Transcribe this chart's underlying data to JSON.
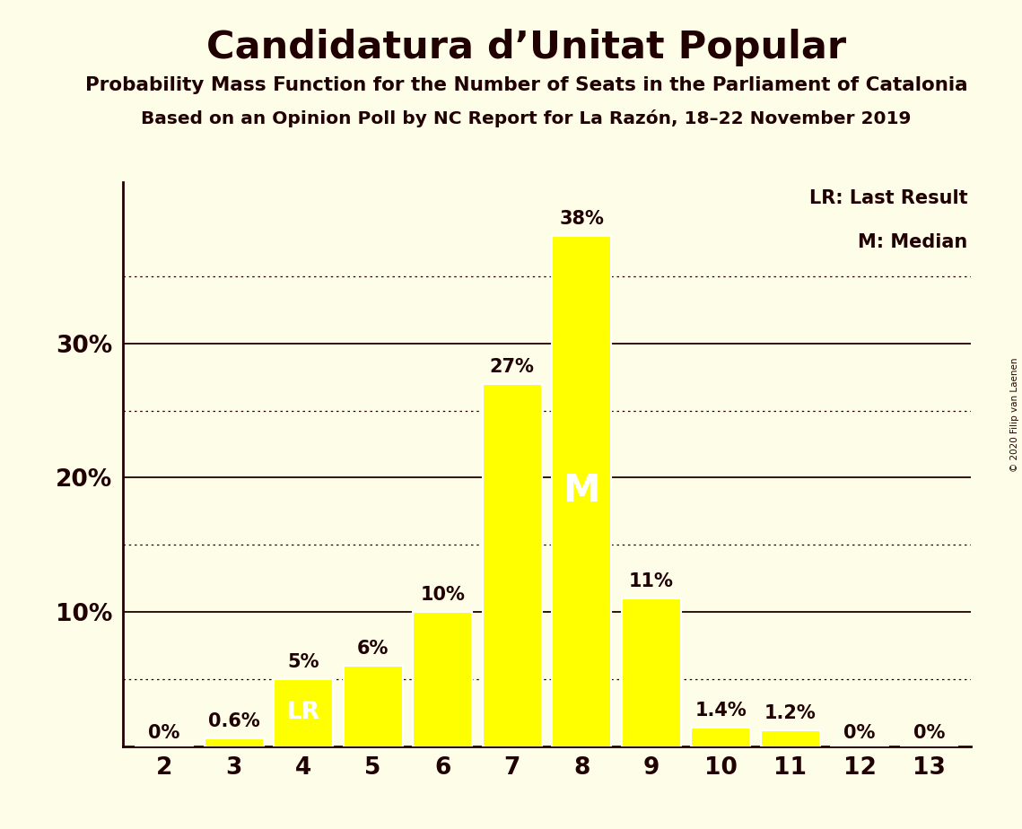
{
  "title": "Candidatura d’Unitat Popular",
  "subtitle1": "Probability Mass Function for the Number of Seats in the Parliament of Catalonia",
  "subtitle2": "Based on an Opinion Poll by NC Report for La Razón, 18–22 November 2019",
  "copyright": "© 2020 Filip van Laenen",
  "categories": [
    2,
    3,
    4,
    5,
    6,
    7,
    8,
    9,
    10,
    11,
    12,
    13
  ],
  "values": [
    0.0,
    0.6,
    5.0,
    6.0,
    10.0,
    27.0,
    38.0,
    11.0,
    1.4,
    1.2,
    0.0,
    0.0
  ],
  "bar_labels": [
    "0%",
    "0.6%",
    "5%",
    "6%",
    "10%",
    "27%",
    "38%",
    "11%",
    "1.4%",
    "1.2%",
    "0%",
    "0%"
  ],
  "lr_index": 2,
  "median_index": 6,
  "bar_color": "#FFFF00",
  "bar_edge_color": "#FFFFFF",
  "background_color": "#FEFEE8",
  "text_color": "#200000",
  "ylim": [
    0,
    42
  ],
  "grid_solid": [
    10,
    20,
    30
  ],
  "grid_dotted": [
    5,
    15,
    25,
    35
  ],
  "legend_lr": "LR: Last Result",
  "legend_m": "M: Median"
}
